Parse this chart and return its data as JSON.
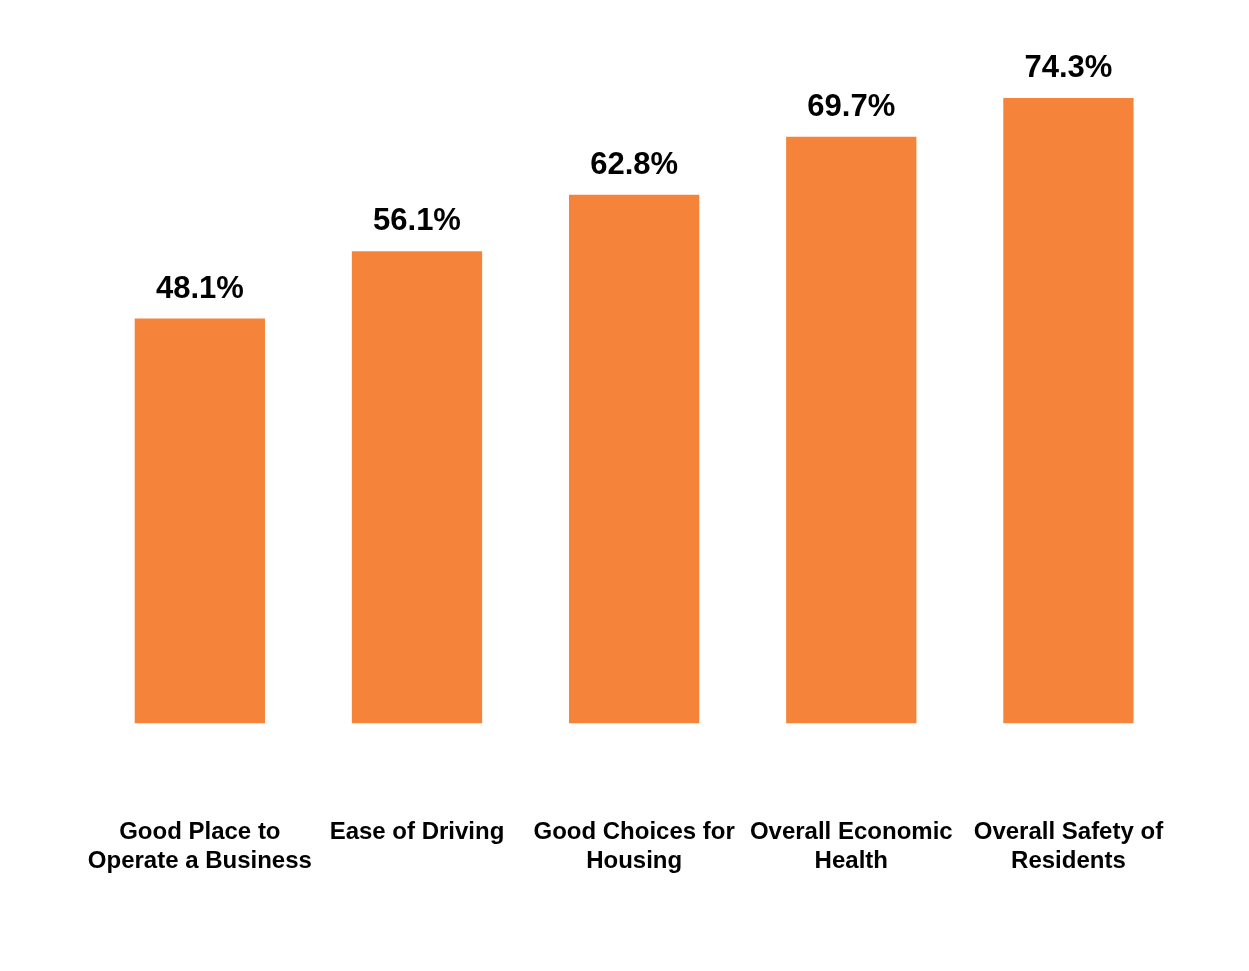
{
  "chart_data": {
    "type": "bar",
    "categories": [
      "Good Place to Operate a Business",
      "Ease of Driving",
      "Good Choices for Housing",
      "Overall Economic Health",
      "Overall Safety of Residents"
    ],
    "values": [
      48.1,
      56.1,
      62.8,
      69.7,
      74.3
    ],
    "value_labels": [
      "48.1%",
      "56.1%",
      "62.8%",
      "69.7%",
      "74.3%"
    ],
    "color": "#f5843a",
    "grid": false,
    "legend": false
  }
}
